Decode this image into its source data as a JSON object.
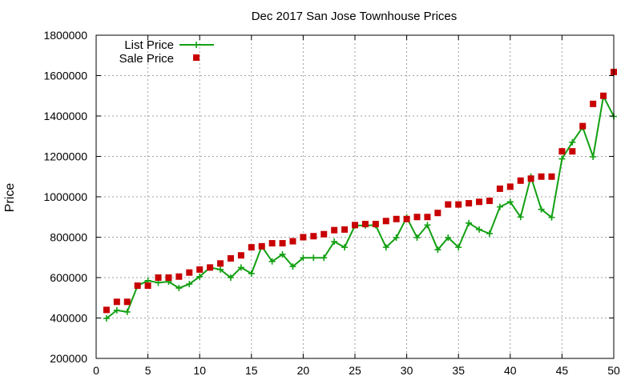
{
  "chart_data": {
    "type": "line",
    "title": "Dec 2017 San Jose Townhouse Prices",
    "xlabel": "",
    "ylabel": "Price",
    "xlim": [
      0,
      50
    ],
    "ylim": [
      200000,
      1800000
    ],
    "x_ticks": [
      0,
      5,
      10,
      15,
      20,
      25,
      30,
      35,
      40,
      45,
      50
    ],
    "y_ticks": [
      200000,
      400000,
      600000,
      800000,
      1000000,
      1200000,
      1400000,
      1600000,
      1800000
    ],
    "grid": true,
    "legend_position": "top-left",
    "series": [
      {
        "name": "List Price",
        "style": "line-with-plus-markers",
        "color": "#12a012",
        "x": [
          1,
          2,
          3,
          4,
          5,
          6,
          7,
          8,
          9,
          10,
          11,
          12,
          13,
          14,
          15,
          16,
          17,
          18,
          19,
          20,
          21,
          22,
          23,
          24,
          25,
          26,
          27,
          28,
          29,
          30,
          31,
          32,
          33,
          34,
          35,
          36,
          37,
          38,
          39,
          40,
          41,
          42,
          43,
          44,
          45,
          46,
          47,
          48,
          49,
          50
        ],
        "values": [
          398000,
          438000,
          430000,
          560000,
          585000,
          575000,
          580000,
          548000,
          568000,
          605000,
          650000,
          640000,
          600000,
          650000,
          620000,
          755000,
          680000,
          715000,
          655000,
          698000,
          698000,
          698000,
          778000,
          750000,
          858000,
          858000,
          860000,
          750000,
          798000,
          898000,
          798000,
          860000,
          738000,
          798000,
          750000,
          870000,
          838000,
          818000,
          950000,
          975000,
          900000,
          1100000,
          938000,
          898000,
          1188000,
          1270000,
          1345000,
          1198000,
          1498000,
          1398000
        ]
      },
      {
        "name": "Sale Price",
        "style": "square-markers",
        "color": "#c80000",
        "x": [
          1,
          2,
          3,
          4,
          5,
          6,
          7,
          8,
          9,
          10,
          11,
          12,
          13,
          14,
          15,
          16,
          17,
          18,
          19,
          20,
          21,
          22,
          23,
          24,
          25,
          26,
          27,
          28,
          29,
          30,
          31,
          32,
          33,
          34,
          35,
          36,
          37,
          38,
          39,
          40,
          41,
          42,
          43,
          44,
          45,
          46,
          47,
          48,
          49,
          50
        ],
        "values": [
          440000,
          480000,
          480000,
          560000,
          560000,
          600000,
          600000,
          605000,
          625000,
          640000,
          650000,
          670000,
          695000,
          710000,
          750000,
          755000,
          770000,
          770000,
          780000,
          800000,
          805000,
          815000,
          835000,
          838000,
          860000,
          865000,
          865000,
          880000,
          890000,
          890000,
          900000,
          900000,
          920000,
          962000,
          962000,
          968000,
          975000,
          980000,
          1040000,
          1050000,
          1080000,
          1090000,
          1100000,
          1100000,
          1225000,
          1225000,
          1350000,
          1460000,
          1500000,
          1618000
        ]
      }
    ]
  },
  "colors": {
    "list_price": "#12a012",
    "sale_price": "#c80000",
    "grid": "#a0a0a0",
    "axis": "#000000"
  }
}
